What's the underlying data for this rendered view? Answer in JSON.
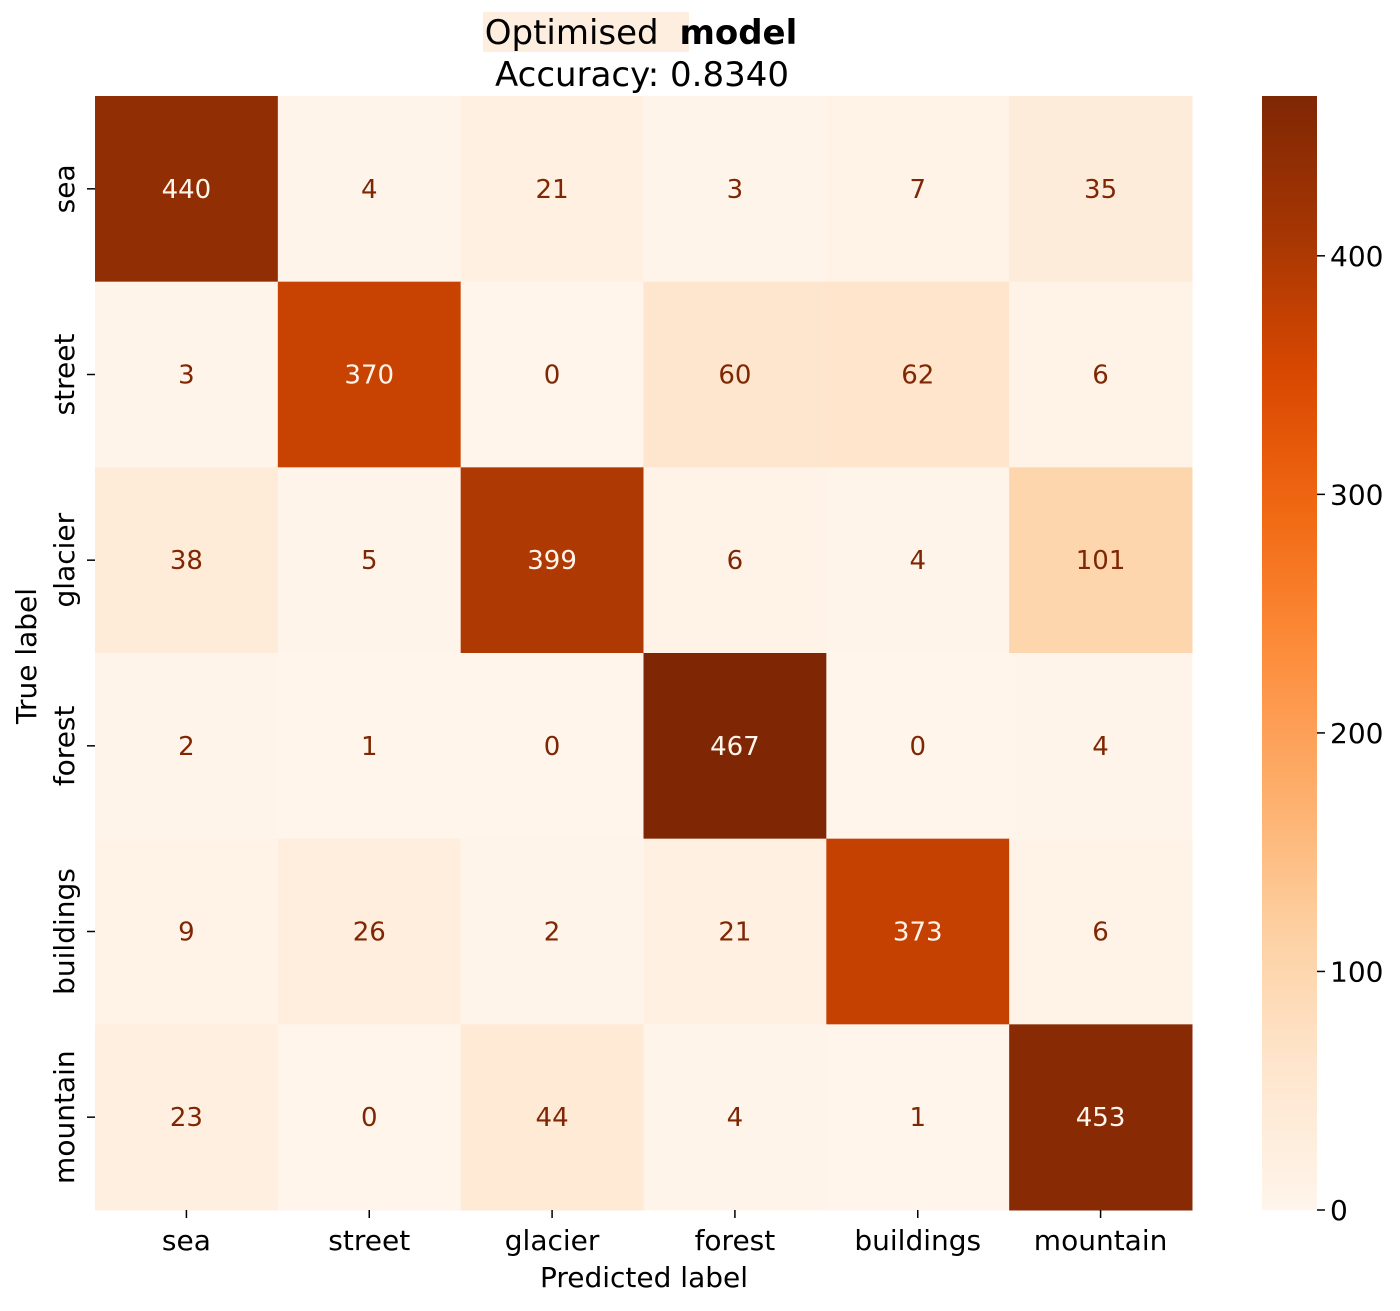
{
  "chart_data": {
    "type": "heatmap",
    "title": {
      "highlighted": "Optimised",
      "rest": "model",
      "subtitle": "Accuracy: 0.8340"
    },
    "xlabel": "Predicted label",
    "ylabel": "True label",
    "x_categories": [
      "sea",
      "street",
      "glacier",
      "forest",
      "buildings",
      "mountain"
    ],
    "y_categories": [
      "sea",
      "street",
      "glacier",
      "forest",
      "buildings",
      "mountain"
    ],
    "matrix": [
      [
        440,
        4,
        21,
        3,
        7,
        35
      ],
      [
        3,
        370,
        0,
        60,
        62,
        6
      ],
      [
        38,
        5,
        399,
        6,
        4,
        101
      ],
      [
        2,
        1,
        0,
        467,
        0,
        4
      ],
      [
        9,
        26,
        2,
        21,
        373,
        6
      ],
      [
        23,
        0,
        44,
        4,
        1,
        453
      ]
    ],
    "colormap": "Oranges",
    "colors": [
      "#fff5eb",
      "#fee6ce",
      "#fdd0a2",
      "#fdae6b",
      "#fd8d3c",
      "#f16913",
      "#d94801",
      "#a63603",
      "#7f2704"
    ],
    "vmin": 0,
    "vmax": 467,
    "colorbar_ticks": [
      0,
      100,
      200,
      300,
      400
    ],
    "grid": false,
    "legend": "colorbar-right"
  }
}
